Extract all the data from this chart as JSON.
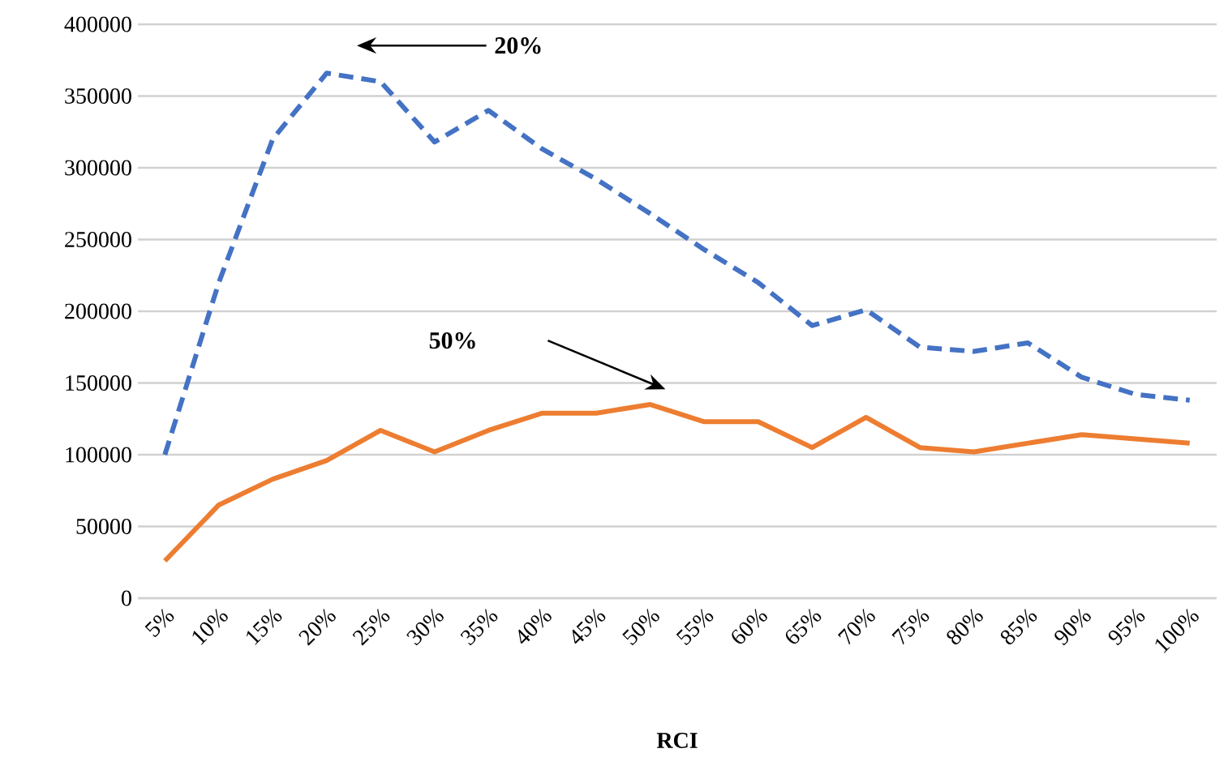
{
  "chart_data": {
    "type": "line",
    "xlabel": "RCI",
    "categories": [
      "5%",
      "10%",
      "15%",
      "20%",
      "25%",
      "30%",
      "35%",
      "40%",
      "45%",
      "50%",
      "55%",
      "60%",
      "65%",
      "70%",
      "75%",
      "80%",
      "85%",
      "90%",
      "95%",
      "100%"
    ],
    "series": [
      {
        "color": "#4472c4",
        "line_style": "dashed",
        "values": [
          100000,
          220000,
          320000,
          366000,
          360000,
          318000,
          340000,
          313000,
          292000,
          268000,
          243000,
          220000,
          190000,
          201000,
          175000,
          172000,
          178000,
          154000,
          142000,
          138000
        ]
      },
      {
        "color": "#ed7d31",
        "line_style": "solid",
        "values": [
          26000,
          65000,
          83000,
          96000,
          117000,
          102000,
          117000,
          129000,
          129000,
          135000,
          123000,
          123000,
          105000,
          126000,
          105000,
          102000,
          108000,
          114000,
          111000,
          108000
        ]
      }
    ],
    "ylim": [
      0,
      400000
    ],
    "yticks": [
      0,
      50000,
      100000,
      150000,
      200000,
      250000,
      300000,
      350000,
      400000
    ],
    "grid": "y",
    "marker": "none",
    "annotations": [
      "20%",
      "50%"
    ]
  }
}
